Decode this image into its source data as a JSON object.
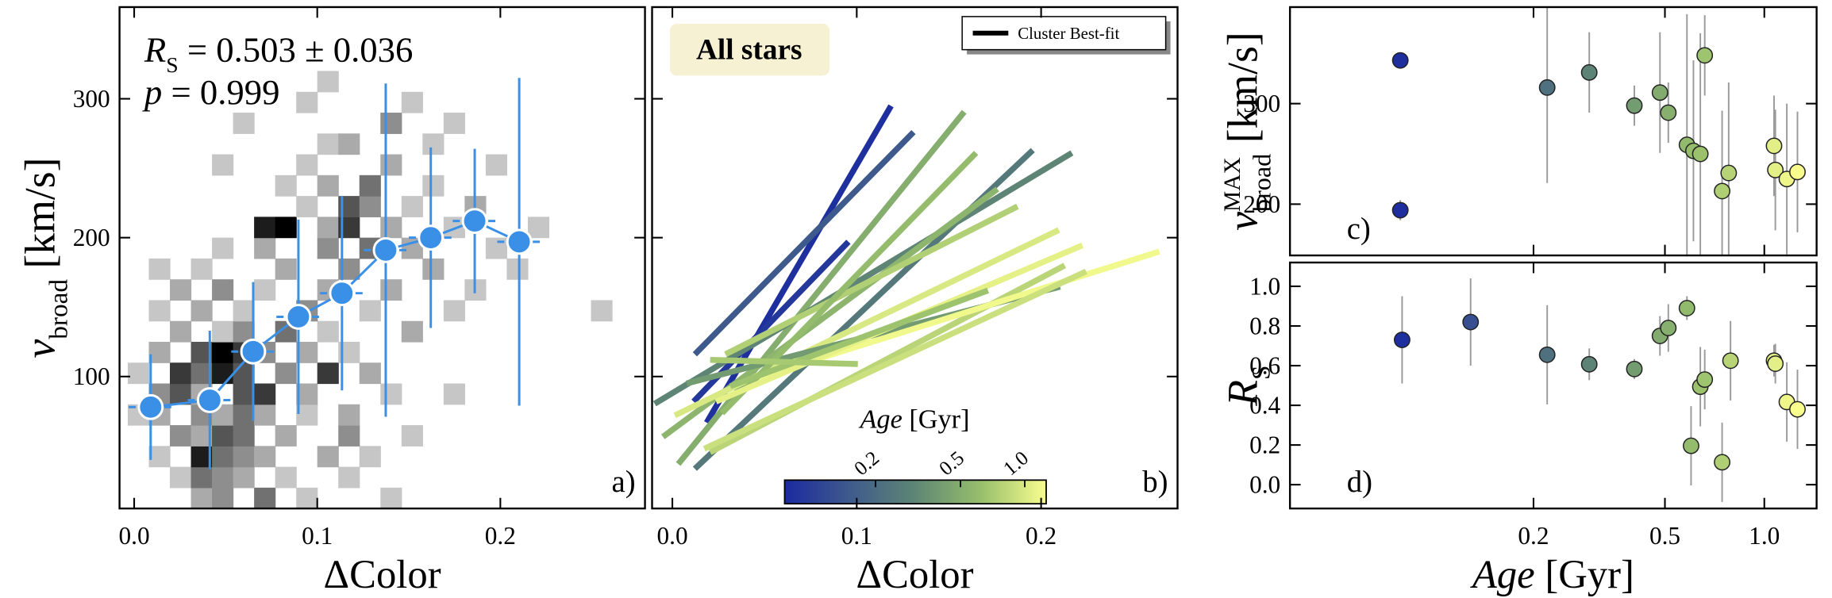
{
  "colormap": {
    "colors": [
      "#1b2ba0",
      "#3f5a8c",
      "#5e8674",
      "#97bf6c",
      "#f8fd8e"
    ],
    "lim": [
      0.075,
      1.26
    ],
    "scale": "log"
  },
  "chart_data": [
    {
      "type": "heatmap",
      "panel_label": "a)",
      "xlabel": "ΔColor",
      "ylabel": {
        "main": "v",
        "sub": "broad",
        "unit": "[km/s]"
      },
      "xlim": [
        -0.008,
        0.279
      ],
      "ylim": [
        5,
        366
      ],
      "xticks": [
        {
          "value": 0,
          "label": "0.0"
        },
        0.1,
        0.2
      ],
      "yticks": [
        100,
        200,
        300
      ],
      "cell_size": [
        0.0115,
        15
      ],
      "cmax": 9,
      "cells": [
        [
          0.031,
          5,
          3
        ],
        [
          0.0425,
          5,
          4
        ],
        [
          0.0655,
          5,
          5
        ],
        [
          0.1345,
          5,
          2
        ],
        [
          0.0885,
          5,
          2
        ],
        [
          0.0195,
          20,
          2
        ],
        [
          0.031,
          20,
          5
        ],
        [
          0.0425,
          20,
          4
        ],
        [
          0.054,
          20,
          3
        ],
        [
          0.077,
          20,
          2
        ],
        [
          0.1115,
          20,
          2
        ],
        [
          0.008,
          35,
          2
        ],
        [
          0.031,
          35,
          8
        ],
        [
          0.0425,
          35,
          5
        ],
        [
          0.054,
          35,
          4
        ],
        [
          0.0655,
          35,
          3
        ],
        [
          0.1,
          35,
          3
        ],
        [
          0.123,
          35,
          2
        ],
        [
          0.0195,
          50,
          4
        ],
        [
          0.031,
          50,
          3
        ],
        [
          0.0425,
          50,
          6
        ],
        [
          0.054,
          50,
          5
        ],
        [
          0.077,
          50,
          3
        ],
        [
          0.1115,
          50,
          4
        ],
        [
          0.146,
          50,
          2
        ],
        [
          -0.0035,
          65,
          2
        ],
        [
          0.008,
          65,
          3
        ],
        [
          0.031,
          65,
          4
        ],
        [
          0.0425,
          65,
          3
        ],
        [
          0.054,
          65,
          5
        ],
        [
          0.0655,
          65,
          3
        ],
        [
          0.0885,
          65,
          2
        ],
        [
          0.1115,
          65,
          3
        ],
        [
          0.008,
          80,
          4
        ],
        [
          0.0195,
          80,
          6
        ],
        [
          0.031,
          80,
          3
        ],
        [
          0.054,
          80,
          6
        ],
        [
          0.0655,
          80,
          7
        ],
        [
          0.0885,
          80,
          3
        ],
        [
          0.1345,
          80,
          2
        ],
        [
          0.169,
          80,
          2
        ],
        [
          -0.0035,
          95,
          2
        ],
        [
          0.0195,
          95,
          7
        ],
        [
          0.031,
          95,
          5
        ],
        [
          0.0425,
          95,
          8
        ],
        [
          0.054,
          95,
          6
        ],
        [
          0.077,
          95,
          4
        ],
        [
          0.1,
          95,
          7
        ],
        [
          0.123,
          95,
          3
        ],
        [
          0.008,
          110,
          3
        ],
        [
          0.031,
          110,
          6
        ],
        [
          0.0425,
          110,
          9
        ],
        [
          0.054,
          110,
          7
        ],
        [
          0.0655,
          110,
          4
        ],
        [
          0.0885,
          110,
          3
        ],
        [
          0.1115,
          110,
          2
        ],
        [
          0.0195,
          125,
          3
        ],
        [
          0.0425,
          125,
          2
        ],
        [
          0.054,
          125,
          4
        ],
        [
          0.077,
          125,
          5
        ],
        [
          0.1,
          125,
          2
        ],
        [
          0.146,
          125,
          3
        ],
        [
          0.008,
          140,
          2
        ],
        [
          0.031,
          140,
          3
        ],
        [
          0.054,
          140,
          2
        ],
        [
          0.0885,
          140,
          4
        ],
        [
          0.123,
          140,
          2
        ],
        [
          0.169,
          140,
          2
        ],
        [
          0.2495,
          140,
          2
        ],
        [
          0.0195,
          155,
          3
        ],
        [
          0.0425,
          155,
          4
        ],
        [
          0.0655,
          155,
          2
        ],
        [
          0.1,
          155,
          3
        ],
        [
          0.1345,
          155,
          3
        ],
        [
          0.1805,
          155,
          2
        ],
        [
          0.008,
          170,
          2
        ],
        [
          0.031,
          170,
          2
        ],
        [
          0.077,
          170,
          3
        ],
        [
          0.1115,
          170,
          4
        ],
        [
          0.1575,
          170,
          3
        ],
        [
          0.2035,
          170,
          2
        ],
        [
          0.0425,
          185,
          2
        ],
        [
          0.0655,
          185,
          3
        ],
        [
          0.1,
          185,
          4
        ],
        [
          0.123,
          185,
          5
        ],
        [
          0.146,
          185,
          3
        ],
        [
          0.192,
          185,
          2
        ],
        [
          0.0655,
          200,
          8
        ],
        [
          0.077,
          200,
          9
        ],
        [
          0.1,
          200,
          3
        ],
        [
          0.1115,
          200,
          7
        ],
        [
          0.1345,
          200,
          3
        ],
        [
          0.169,
          200,
          2
        ],
        [
          0.215,
          200,
          2
        ],
        [
          0.0885,
          215,
          2
        ],
        [
          0.1115,
          215,
          6
        ],
        [
          0.123,
          215,
          4
        ],
        [
          0.146,
          215,
          2
        ],
        [
          0.1805,
          215,
          3
        ],
        [
          0.077,
          230,
          2
        ],
        [
          0.1,
          230,
          3
        ],
        [
          0.123,
          230,
          5
        ],
        [
          0.1575,
          230,
          2
        ],
        [
          0.0425,
          245,
          2
        ],
        [
          0.0885,
          245,
          2
        ],
        [
          0.1345,
          245,
          3
        ],
        [
          0.192,
          245,
          2
        ],
        [
          0.1,
          260,
          2
        ],
        [
          0.1115,
          260,
          3
        ],
        [
          0.1575,
          260,
          2
        ],
        [
          0.054,
          275,
          2
        ],
        [
          0.1345,
          275,
          4
        ],
        [
          0.169,
          275,
          2
        ],
        [
          0.0885,
          290,
          2
        ],
        [
          0.146,
          290,
          2
        ],
        [
          0.1,
          305,
          2
        ]
      ],
      "binned": {
        "color": "#3a8fe6",
        "x": [
          0.009,
          0.0413,
          0.065,
          0.0897,
          0.1135,
          0.1374,
          0.162,
          0.186,
          0.2103
        ],
        "values": [
          78,
          83,
          118,
          143,
          160,
          191,
          200,
          212,
          197
        ],
        "yerr": [
          38,
          50,
          50,
          70,
          70,
          120,
          65,
          52,
          118
        ],
        "xerr": 0.012
      },
      "stat": {
        "main": "R",
        "sub": "S",
        "text": "= 0.503 ± 0.036"
      },
      "p_text": {
        "main": "p",
        "text": "= 0.999"
      }
    },
    {
      "type": "segments",
      "panel_label": "b)",
      "xlabel": "ΔColor",
      "tag": "All stars",
      "legend_label": "Cluster Best-fit",
      "legend_color": "#000000",
      "xlim": [
        -0.011,
        0.274
      ],
      "ylim": [
        5,
        366
      ],
      "xticks": [
        {
          "value": 0,
          "label": "0.0"
        },
        0.1,
        0.2
      ],
      "yticks": [
        100,
        200,
        300
      ],
      "ytick_labels": false,
      "segments": [
        {
          "x": [
            0.0186,
            0.1186
          ],
          "values": [
            66.8,
            294.9
          ],
          "age": 0.08
        },
        {
          "x": [
            0.0122,
            0.1308
          ],
          "values": [
            116,
            276
          ],
          "age": 0.15
        },
        {
          "x": [
            0.0115,
            0.0955
          ],
          "values": [
            82,
            197
          ],
          "age": 0.09
        },
        {
          "x": [
            0.0032,
            0.1583
          ],
          "values": [
            37,
            290.6
          ],
          "age": 0.5
        },
        {
          "x": [
            0.0122,
            0.1955
          ],
          "values": [
            33.6,
            263
          ],
          "age": 0.25
        },
        {
          "x": [
            -0.0096,
            0.2167
          ],
          "values": [
            80.4,
            261
          ],
          "age": 0.3
        },
        {
          "x": [
            -0.0051,
            0.1763
          ],
          "values": [
            56.6,
            235
          ],
          "age": 0.55
        },
        {
          "x": [
            0.0288,
            0.1872
          ],
          "values": [
            116,
            222.5
          ],
          "age": 0.75
        },
        {
          "x": [
            0.0013,
            0.2096
          ],
          "values": [
            72,
            205.5
          ],
          "age": 1.0
        },
        {
          "x": [
            0.0077,
            0.2103
          ],
          "values": [
            95,
            164.7
          ],
          "age": 0.4
        },
        {
          "x": [
            0.0205,
            0.2128
          ],
          "values": [
            45.5,
            180
          ],
          "age": 0.8
        },
        {
          "x": [
            0.0462,
            0.2641
          ],
          "values": [
            99,
            190
          ],
          "age": 1.2
        },
        {
          "x": [
            0.0269,
            0.1647
          ],
          "values": [
            73.6,
            261
          ],
          "age": 0.6
        },
        {
          "x": [
            0.0237,
            0.2224
          ],
          "values": [
            82,
            194.5
          ],
          "age": 1.1
        },
        {
          "x": [
            0.0314,
            0.1712
          ],
          "values": [
            93,
            162
          ],
          "age": 0.65
        },
        {
          "x": [
            0.0205,
            0.1006
          ],
          "values": [
            112,
            109
          ],
          "age": 0.7
        },
        {
          "x": [
            0.0173,
            0.2244
          ],
          "values": [
            48,
            175.7
          ],
          "age": 0.9
        }
      ],
      "colorbar": {
        "label": {
          "main": "Age",
          "unit": "[Gyr]"
        },
        "ticks": [
          0.2,
          0.5,
          {
            "value": 1,
            "label": "1.0"
          }
        ]
      }
    },
    {
      "type": "scatter",
      "panel_label": "c)",
      "ylabel": {
        "main": "v",
        "sup": "MAX",
        "sub": "broad",
        "unit": "[km/s]"
      },
      "xscale": "log",
      "xlim": [
        0.0366,
        1.44
      ],
      "ylim": [
        149,
        396
      ],
      "xticks": [
        0.2,
        0.5,
        {
          "value": 1,
          "label": "1.0"
        }
      ],
      "xtick_labels": false,
      "yticks": [
        200,
        300
      ],
      "x": [
        0.079,
        0.079,
        0.22,
        0.295,
        0.404,
        0.483,
        0.512,
        0.583,
        0.61,
        0.64,
        0.66,
        0.745,
        0.78,
        1.07,
        1.08,
        1.17,
        1.26
      ],
      "values": [
        343,
        194,
        316,
        331,
        298,
        311,
        291,
        259,
        253,
        250,
        348,
        213,
        231,
        258,
        234,
        225,
        232
      ],
      "yerr": [
        8,
        10,
        95,
        40,
        20,
        60,
        30,
        130,
        90,
        120,
        40,
        80,
        90,
        50,
        60,
        75,
        60
      ]
    },
    {
      "type": "scatter",
      "panel_label": "d)",
      "ylabel": {
        "main": "R",
        "sub": "S"
      },
      "xlabel": {
        "main": "Age",
        "unit": "[Gyr]"
      },
      "xscale": "log",
      "xlim": [
        0.0366,
        1.44
      ],
      "ylim": [
        -0.12,
        1.12
      ],
      "xticks": [
        0.2,
        0.5,
        {
          "value": 1,
          "label": "1.0"
        }
      ],
      "yticks": [
        {
          "value": 0,
          "label": "0.0"
        },
        0.2,
        0.4,
        0.6,
        0.8,
        {
          "value": 1,
          "label": "1.0"
        }
      ],
      "x": [
        0.08,
        0.129,
        0.22,
        0.295,
        0.404,
        0.483,
        0.512,
        0.583,
        0.6,
        0.64,
        0.66,
        0.745,
        0.79,
        1.07,
        1.08,
        1.17,
        1.26
      ],
      "values": [
        0.73,
        0.82,
        0.655,
        0.607,
        0.583,
        0.75,
        0.79,
        0.89,
        0.196,
        0.494,
        0.53,
        0.113,
        0.625,
        0.625,
        0.61,
        0.417,
        0.38
      ],
      "yerr": [
        0.22,
        0.22,
        0.25,
        0.08,
        0.05,
        0.1,
        0.12,
        0.06,
        0.2,
        0.2,
        0.15,
        0.2,
        0.2,
        0.08,
        0.1,
        0.2,
        0.2
      ]
    }
  ]
}
